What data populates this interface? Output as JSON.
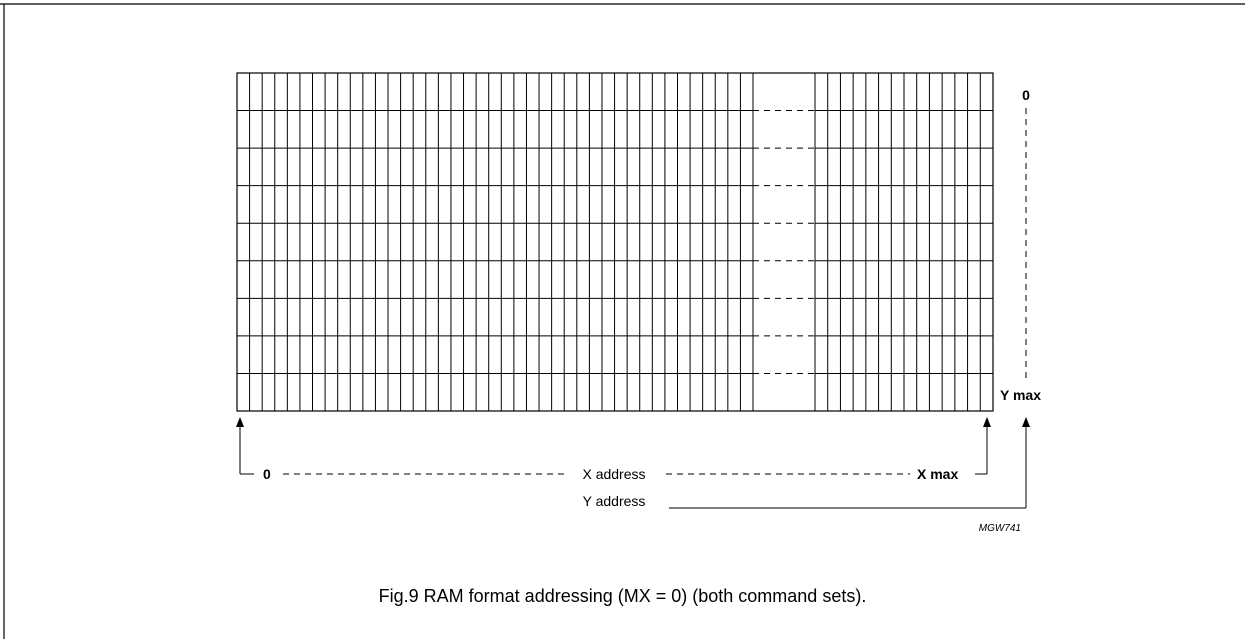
{
  "diagram": {
    "y_start_label": "0",
    "y_end_label": "Y max",
    "x_start_label": "0",
    "x_end_label": "X max",
    "x_axis_label": "X address",
    "y_axis_label": "Y address",
    "figure_code": "MGW741"
  },
  "caption": "Fig.9  RAM format addressing (MX = 0) (both command sets)."
}
